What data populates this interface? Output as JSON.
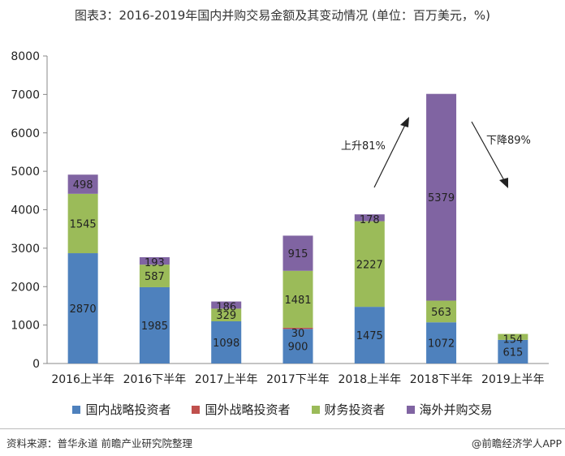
{
  "title": "图表3：2016-2019年国内并购交易金额及其变动情况 (单位：百万美元，%)",
  "source": "资料来源：普华永道 前瞻产业研究院整理",
  "credit": "@前瞻经济学人APP",
  "legend": [
    {
      "name": "国内战略投资者",
      "color": "#4e81bd"
    },
    {
      "name": "国外战略投资者",
      "color": "#c0504d"
    },
    {
      "name": "财务投资者",
      "color": "#9bbb59"
    },
    {
      "name": "海外并购交易",
      "color": "#8064a2"
    }
  ],
  "chart_data": {
    "type": "bar",
    "stacked": true,
    "categories": [
      "2016上半年",
      "2016下半年",
      "2017上半年",
      "2017下半年",
      "2018上半年",
      "2018下半年",
      "2019上半年"
    ],
    "series": [
      {
        "name": "国内战略投资者",
        "color": "#4e81bd",
        "values": [
          2870,
          1985,
          1098,
          900,
          1475,
          1072,
          615
        ],
        "labels": [
          "2870",
          "1985",
          "1098",
          "900",
          "1475",
          "1072",
          "615"
        ]
      },
      {
        "name": "国外战略投资者",
        "color": "#c0504d",
        "values": [
          0,
          0,
          0,
          30,
          0,
          0,
          0
        ],
        "labels": [
          "",
          "",
          "",
          "30",
          "",
          "",
          ""
        ]
      },
      {
        "name": "财务投资者",
        "color": "#9bbb59",
        "values": [
          1545,
          587,
          329,
          1481,
          2227,
          563,
          154
        ],
        "labels": [
          "1545",
          "587",
          "329",
          "1481",
          "2227",
          "563",
          "154"
        ]
      },
      {
        "name": "海外并购交易",
        "color": "#8064a2",
        "values": [
          498,
          193,
          186,
          915,
          178,
          5379,
          0
        ],
        "labels": [
          "498",
          "193",
          "186",
          "915",
          "178",
          "5379",
          ""
        ]
      }
    ],
    "ylim": [
      0,
      8000
    ],
    "yticks": [
      0,
      1000,
      2000,
      3000,
      4000,
      5000,
      6000,
      7000,
      8000
    ],
    "grid": false,
    "legend_position": "bottom",
    "annotations": [
      {
        "text": "上升81%",
        "direction": "up"
      },
      {
        "text": "下降89%",
        "direction": "down"
      }
    ]
  }
}
